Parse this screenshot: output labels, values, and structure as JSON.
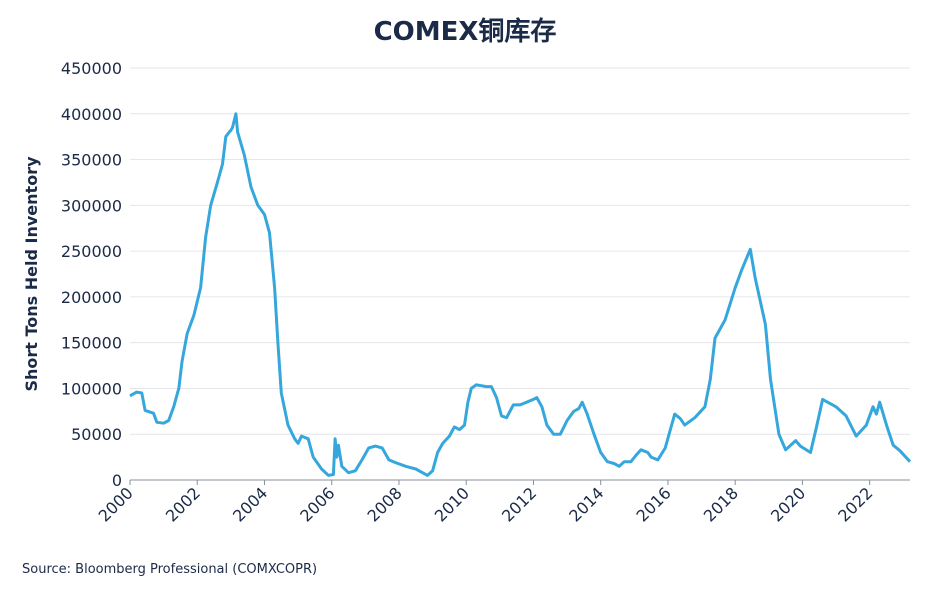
{
  "chart_data": {
    "type": "line",
    "title": "COMEX铜库存",
    "y_label": "Short Tons Held Inventory",
    "source": "Source: Bloomberg Professional (COMXCOPR)",
    "series": [
      {
        "name": "COMXCOPR",
        "color": "#35a7dc",
        "x": [
          2000.0,
          2000.2,
          2000.35,
          2000.45,
          2000.7,
          2000.8,
          2001.0,
          2001.15,
          2001.3,
          2001.45,
          2001.55,
          2001.7,
          2001.9,
          2002.1,
          2002.25,
          2002.4,
          2002.6,
          2002.75,
          2002.85,
          2002.95,
          2003.0,
          2003.05,
          2003.15,
          2003.2,
          2003.4,
          2003.6,
          2003.8,
          2004.0,
          2004.15,
          2004.3,
          2004.4,
          2004.5,
          2004.7,
          2004.9,
          2005.0,
          2005.1,
          2005.3,
          2005.45,
          2005.7,
          2005.9,
          2006.05,
          2006.1,
          2006.15,
          2006.2,
          2006.3,
          2006.5,
          2006.7,
          2006.9,
          2007.1,
          2007.3,
          2007.5,
          2007.7,
          2007.9,
          2008.2,
          2008.5,
          2008.7,
          2008.85,
          2009.0,
          2009.15,
          2009.3,
          2009.5,
          2009.65,
          2009.8,
          2009.95,
          2010.05,
          2010.15,
          2010.3,
          2010.6,
          2010.75,
          2010.9,
          2011.05,
          2011.2,
          2011.4,
          2011.6,
          2011.8,
          2012.0,
          2012.1,
          2012.25,
          2012.4,
          2012.6,
          2012.8,
          2013.0,
          2013.2,
          2013.35,
          2013.45,
          2013.6,
          2013.8,
          2014.0,
          2014.2,
          2014.4,
          2014.55,
          2014.7,
          2014.9,
          2015.05,
          2015.2,
          2015.4,
          2015.5,
          2015.7,
          2015.92,
          2016.2,
          2016.37,
          2016.5,
          2016.8,
          2017.1,
          2017.26,
          2017.4,
          2017.7,
          2018.0,
          2018.2,
          2018.45,
          2018.6,
          2018.9,
          2019.05,
          2019.3,
          2019.5,
          2019.8,
          2019.94,
          2020.24,
          2020.4,
          2020.6,
          2021.0,
          2021.3,
          2021.6,
          2021.9,
          2022.1,
          2022.2,
          2022.3,
          2022.5,
          2022.7,
          2022.9,
          2023.2
        ],
        "values": [
          92000,
          96000,
          95000,
          76000,
          73000,
          63000,
          62000,
          65000,
          80000,
          100000,
          130000,
          160000,
          180000,
          210000,
          265000,
          300000,
          325000,
          345000,
          375000,
          380000,
          382000,
          385000,
          400000,
          380000,
          355000,
          320000,
          300000,
          290000,
          270000,
          210000,
          150000,
          95000,
          60000,
          45000,
          40000,
          48000,
          45000,
          25000,
          12000,
          5000,
          6000,
          45000,
          25000,
          38000,
          15000,
          8000,
          10000,
          22000,
          35000,
          37000,
          35000,
          22000,
          19000,
          15000,
          12000,
          8000,
          5000,
          10000,
          30000,
          40000,
          48000,
          58000,
          55000,
          60000,
          85000,
          100000,
          104000,
          102000,
          102000,
          90000,
          70000,
          68000,
          82000,
          82000,
          85000,
          88000,
          90000,
          80000,
          60000,
          50000,
          50000,
          65000,
          75000,
          78000,
          85000,
          72000,
          50000,
          30000,
          20000,
          18000,
          15000,
          20000,
          20000,
          27000,
          33000,
          30000,
          25000,
          22000,
          35000,
          72000,
          67000,
          60000,
          68000,
          80000,
          110000,
          155000,
          175000,
          210000,
          230000,
          252000,
          220000,
          170000,
          110000,
          50000,
          33000,
          43000,
          37000,
          30000,
          55000,
          88000,
          80000,
          70000,
          48000,
          60000,
          80000,
          72000,
          85000,
          60000,
          38000,
          32000,
          20000
        ]
      }
    ],
    "xlim": [
      2000,
      2023.2
    ],
    "xticks": [
      2000,
      2002,
      2004,
      2006,
      2008,
      2010,
      2012,
      2014,
      2016,
      2018,
      2020,
      2022
    ],
    "ylim": [
      0,
      450000
    ],
    "yticks": [
      0,
      50000,
      100000,
      150000,
      200000,
      250000,
      300000,
      350000,
      400000,
      450000
    ],
    "grid": true
  }
}
